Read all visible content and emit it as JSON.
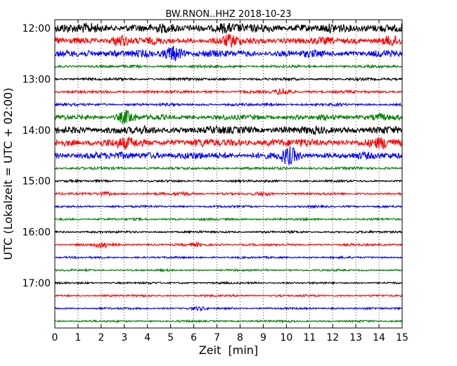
{
  "chart_data": {
    "type": "line",
    "title": "BW.RNON..HHZ 2018-10-23",
    "xlabel": "Zeit  [min]",
    "ylabel": "UTC (Lokalzeit = UTC + 02:00)",
    "xlim": [
      0,
      15
    ],
    "x_ticks": [
      "0",
      "1",
      "2",
      "3",
      "4",
      "5",
      "6",
      "7",
      "8",
      "9",
      "10",
      "11",
      "12",
      "13",
      "14",
      "15"
    ],
    "y_ticks": [
      "12:00",
      "13:00",
      "14:00",
      "15:00",
      "16:00",
      "17:00"
    ],
    "vertical_grid": "dotted",
    "trace_colors": [
      "#000000",
      "#ff0000",
      "#0000ff",
      "#008000"
    ],
    "traces": [
      {
        "start": "12:00",
        "amplitude": 10,
        "bursts": [
          {
            "at": 1.4,
            "amp": 1.2
          },
          {
            "at": 7.2,
            "amp": 1.3
          },
          {
            "at": 14.2,
            "amp": 1.2
          }
        ]
      },
      {
        "start": "12:15",
        "amplitude": 8,
        "bursts": [
          {
            "at": 2.8,
            "amp": 1.6
          },
          {
            "at": 7.6,
            "amp": 1.6
          },
          {
            "at": 14.5,
            "amp": 1.4
          }
        ]
      },
      {
        "start": "12:30",
        "amplitude": 8,
        "bursts": [
          {
            "at": 5.1,
            "amp": 2.0
          },
          {
            "at": 1.5,
            "amp": 1.2
          }
        ]
      },
      {
        "start": "12:45",
        "amplitude": 3,
        "bursts": []
      },
      {
        "start": "13:00",
        "amplitude": 3,
        "bursts": []
      },
      {
        "start": "13:15",
        "amplitude": 3,
        "bursts": [
          {
            "at": 9.9,
            "amp": 2.2
          }
        ]
      },
      {
        "start": "13:30",
        "amplitude": 3,
        "bursts": []
      },
      {
        "start": "13:45",
        "amplitude": 6,
        "bursts": [
          {
            "at": 3.1,
            "amp": 2.2
          },
          {
            "at": 14.0,
            "amp": 1.5
          }
        ]
      },
      {
        "start": "14:00",
        "amplitude": 9,
        "bursts": []
      },
      {
        "start": "14:15",
        "amplitude": 9,
        "bursts": [
          {
            "at": 3.0,
            "amp": 1.4
          },
          {
            "at": 14.2,
            "amp": 1.4
          }
        ]
      },
      {
        "start": "14:30",
        "amplitude": 8,
        "bursts": [
          {
            "at": 10.1,
            "amp": 2.0
          },
          {
            "at": 4.0,
            "amp": 1.2
          }
        ]
      },
      {
        "start": "14:45",
        "amplitude": 3,
        "bursts": []
      },
      {
        "start": "15:00",
        "amplitude": 2.5,
        "bursts": []
      },
      {
        "start": "15:15",
        "amplitude": 2.5,
        "bursts": [
          {
            "at": 2.2,
            "amp": 1.8
          },
          {
            "at": 5.5,
            "amp": 1.8
          },
          {
            "at": 9.0,
            "amp": 1.8
          }
        ]
      },
      {
        "start": "15:30",
        "amplitude": 2.5,
        "bursts": []
      },
      {
        "start": "15:45",
        "amplitude": 2.5,
        "bursts": []
      },
      {
        "start": "16:00",
        "amplitude": 2.5,
        "bursts": []
      },
      {
        "start": "16:15",
        "amplitude": 2.5,
        "bursts": [
          {
            "at": 2.1,
            "amp": 2.6
          },
          {
            "at": 6.2,
            "amp": 1.6
          }
        ]
      },
      {
        "start": "16:30",
        "amplitude": 2.2,
        "bursts": []
      },
      {
        "start": "16:45",
        "amplitude": 2.2,
        "bursts": []
      },
      {
        "start": "17:00",
        "amplitude": 2.2,
        "bursts": []
      },
      {
        "start": "17:15",
        "amplitude": 2.2,
        "bursts": []
      },
      {
        "start": "17:30",
        "amplitude": 2.2,
        "bursts": [
          {
            "at": 6.2,
            "amp": 1.6
          }
        ]
      },
      {
        "start": "17:45",
        "amplitude": 2.2,
        "bursts": []
      }
    ]
  }
}
